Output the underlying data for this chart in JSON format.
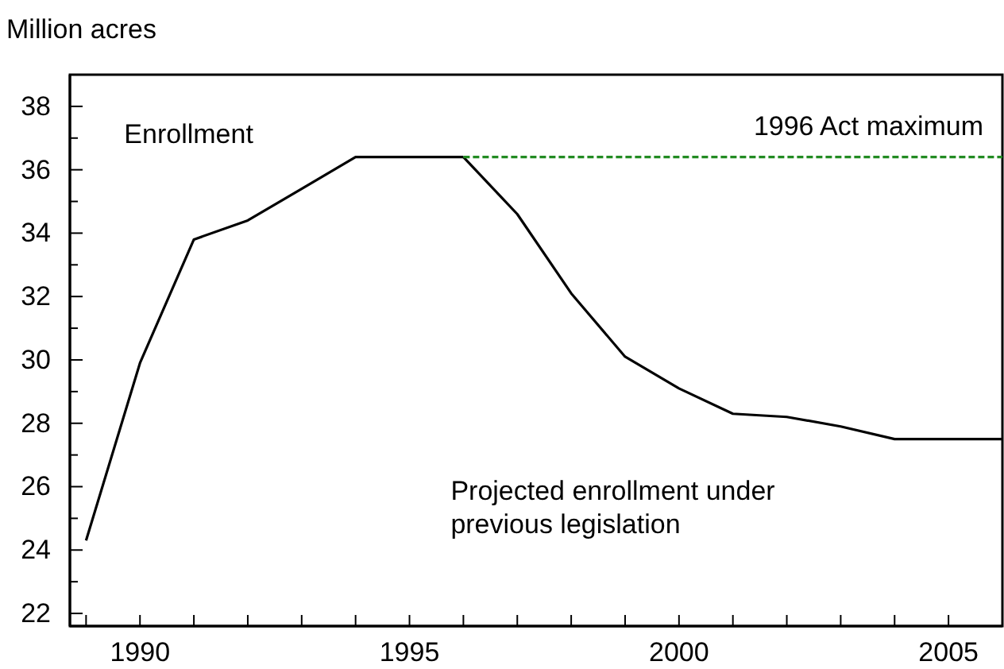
{
  "chart_data": {
    "type": "line",
    "ylabel": "Million acres",
    "xlim": [
      1988.7,
      2006
    ],
    "ylim": [
      21.6,
      39
    ],
    "xticks": [
      {
        "value": 1989,
        "label": null
      },
      1990,
      {
        "value": 1991,
        "label": null
      },
      {
        "value": 1992,
        "label": null
      },
      {
        "value": 1993,
        "label": null
      },
      {
        "value": 1994,
        "label": null
      },
      1995,
      {
        "value": 1996,
        "label": null
      },
      {
        "value": 1997,
        "label": null
      },
      {
        "value": 1998,
        "label": null
      },
      {
        "value": 1999,
        "label": null
      },
      2000,
      {
        "value": 2001,
        "label": null
      },
      {
        "value": 2002,
        "label": null
      },
      {
        "value": 2003,
        "label": null
      },
      {
        "value": 2004,
        "label": null
      },
      2005
    ],
    "yticks": [
      22,
      {
        "value": 23,
        "label": null
      },
      24,
      {
        "value": 25,
        "label": null
      },
      26,
      {
        "value": 27,
        "label": null
      },
      28,
      {
        "value": 29,
        "label": null
      },
      30,
      {
        "value": 31,
        "label": null
      },
      32,
      {
        "value": 33,
        "label": null
      },
      34,
      {
        "value": 35,
        "label": null
      },
      36,
      {
        "value": 37,
        "label": null
      },
      38
    ],
    "grid": false,
    "series": [
      {
        "name": "Enrollment",
        "color": "#000000",
        "line_style": "solid",
        "x": [
          1989,
          1990,
          1991,
          1992,
          1993,
          1994,
          1995,
          1996
        ],
        "values": [
          24.3,
          29.9,
          33.8,
          34.4,
          35.4,
          36.4,
          36.4,
          36.4
        ]
      },
      {
        "name": "Projected enrollment under previous legislation",
        "color": "#000000",
        "line_style": "solid",
        "x": [
          1996,
          1997,
          1998,
          1999,
          2000,
          2001,
          2002,
          2003,
          2004,
          2005,
          2006
        ],
        "values": [
          36.4,
          34.6,
          32.1,
          30.1,
          29.1,
          28.3,
          28.2,
          27.9,
          27.5,
          27.5,
          27.5
        ]
      },
      {
        "name": "1996 Act maximum",
        "color": "#228b22",
        "line_style": "dashed",
        "x": [
          1996,
          2006
        ],
        "values": [
          36.4,
          36.4
        ]
      }
    ]
  }
}
